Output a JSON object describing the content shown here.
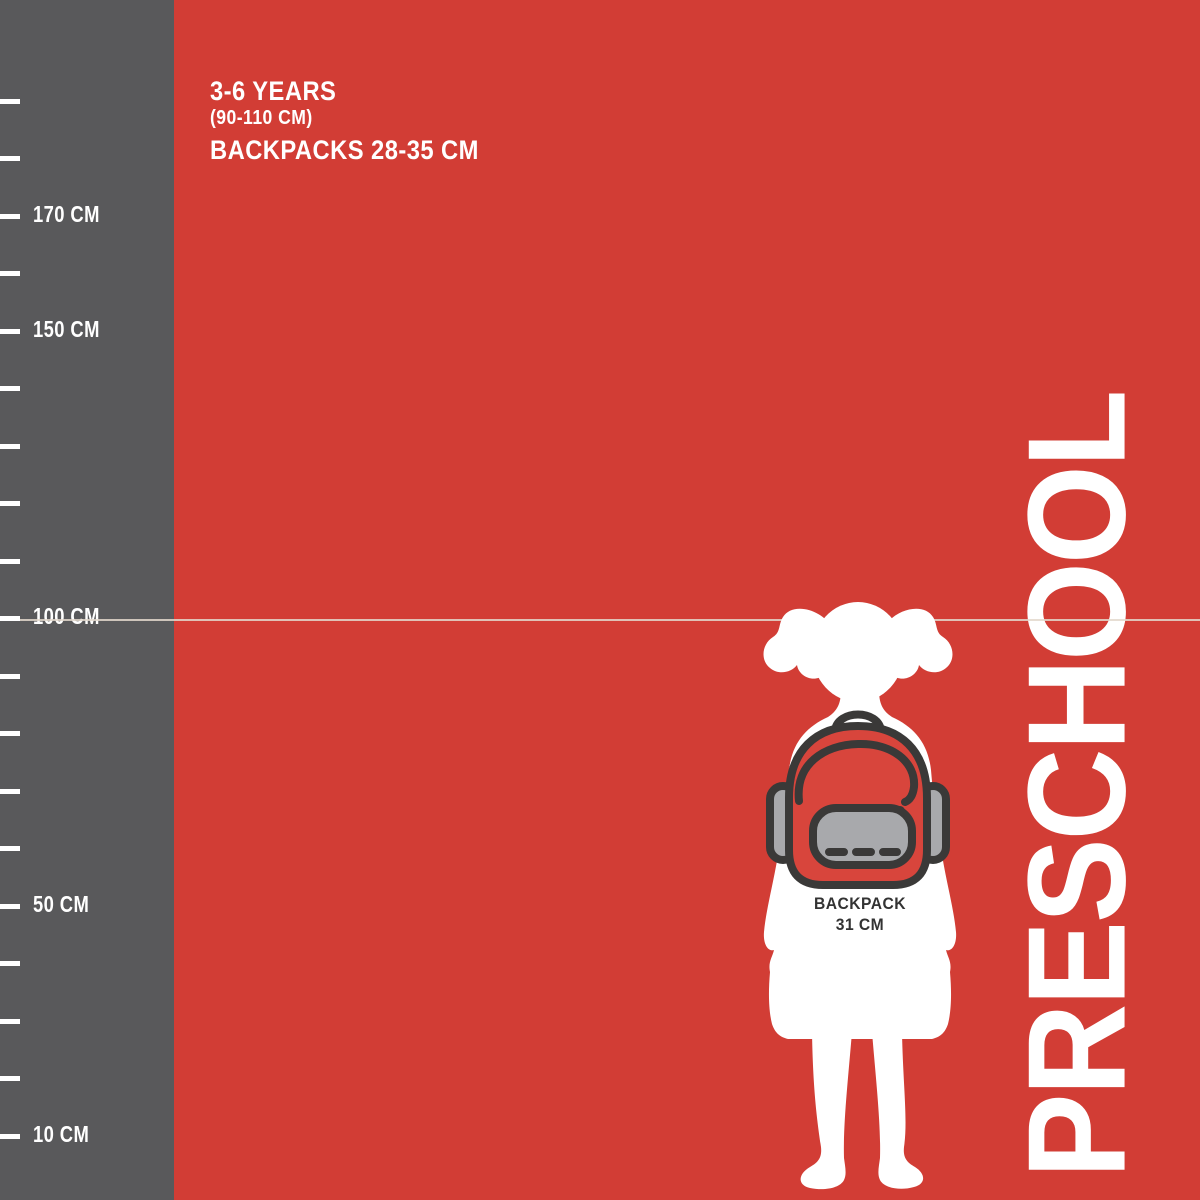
{
  "header": {
    "age_range": "3-6 YEARS",
    "height_range": "(90-110 CM)",
    "backpack_range": "BACKPACKS 28-35 CM"
  },
  "ruler": {
    "unit": "CM",
    "tick_min": 10,
    "tick_max": 190,
    "tick_step": 10,
    "labeled_ticks": [
      {
        "value": 170,
        "label": "170 CM"
      },
      {
        "value": 150,
        "label": "150 CM"
      },
      {
        "value": 100,
        "label": "100 CM"
      },
      {
        "value": 50,
        "label": "50 CM"
      },
      {
        "value": 10,
        "label": "10 CM"
      }
    ]
  },
  "reference_line": {
    "at_cm": 100
  },
  "figure": {
    "backpack_label_line1": "BACKPACK",
    "backpack_label_line2": "31 CM"
  },
  "category": {
    "label": "PRESCHOOL"
  },
  "colors": {
    "background_red": "#d23d35",
    "ruler_gray": "#59595b",
    "silhouette_white": "#ffffff",
    "text_white": "#ffffff",
    "outline_dark": "#3a3938",
    "pocket_gray": "#a8a9ac",
    "backpack_red": "#d8453c",
    "size_label_dark": "#333333",
    "reference_line": "#e3d8cd"
  }
}
